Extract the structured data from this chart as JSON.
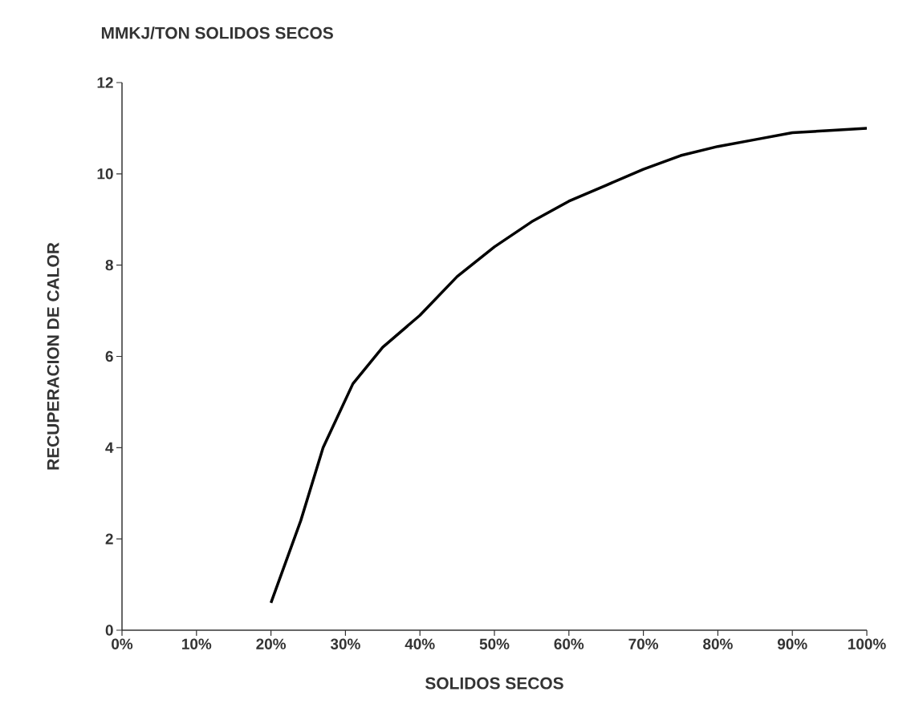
{
  "chart_data": {
    "type": "line",
    "title": "MMKJ/TON SOLIDOS SECOS",
    "xlabel": "SOLIDOS SECOS",
    "ylabel": "RECUPERACION DE CALOR",
    "series": [
      {
        "color": "#000000",
        "x": [
          20,
          24,
          27,
          31,
          35,
          40,
          45,
          50,
          55,
          60,
          65,
          70,
          75,
          80,
          85,
          90,
          95,
          100
        ],
        "values": [
          0.6,
          2.4,
          4.0,
          5.4,
          6.2,
          6.9,
          7.75,
          8.4,
          8.95,
          9.4,
          9.75,
          10.1,
          10.4,
          10.6,
          10.75,
          10.9,
          10.95,
          11.0
        ]
      }
    ],
    "xlim": [
      0,
      100
    ],
    "ylim": [
      0,
      12
    ],
    "xticks": [
      {
        "value": 0,
        "label": "0%"
      },
      {
        "value": 10,
        "label": "10%"
      },
      {
        "value": 20,
        "label": "20%"
      },
      {
        "value": 30,
        "label": "30%"
      },
      {
        "value": 40,
        "label": "40%"
      },
      {
        "value": 50,
        "label": "50%"
      },
      {
        "value": 60,
        "label": "60%"
      },
      {
        "value": 70,
        "label": "70%"
      },
      {
        "value": 80,
        "label": "80%"
      },
      {
        "value": 90,
        "label": "90%"
      },
      {
        "value": 100,
        "label": "100%"
      }
    ],
    "yticks": [
      0,
      2,
      4,
      6,
      8,
      10,
      12
    ],
    "grid": false,
    "marker": "none",
    "line_style": "solid"
  }
}
